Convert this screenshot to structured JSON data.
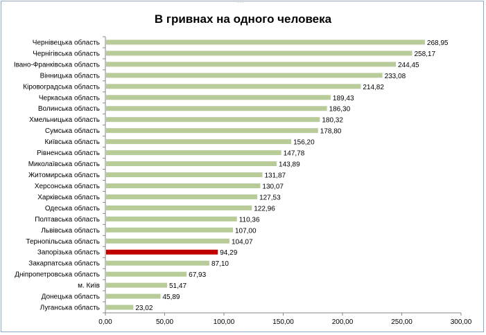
{
  "chart_data": {
    "type": "bar",
    "orientation": "horizontal",
    "title": "В гривнах на одного человека",
    "xlabel": "",
    "ylabel": "",
    "xlim": [
      0,
      300
    ],
    "x_ticks": [
      "0,00",
      "50,00",
      "100,00",
      "150,00",
      "200,00",
      "250,00",
      "300,00"
    ],
    "grid": false,
    "colors": {
      "default": "#b7cc98",
      "highlight": "#c00000"
    },
    "highlight": "Запорізька область",
    "categories": [
      "Чернівецька область",
      "Чернігівська область",
      "Івано-Франківська  область",
      "Вінницька область",
      "Кіровоградська область",
      "Черкаська область",
      "Волинська область",
      "Хмельницька  область",
      "Сумська область",
      "Київська область",
      "Рівненська область",
      "Миколаївська  область",
      "Житомирська область",
      "Херсонська область",
      "Харківська область",
      "Одеська область",
      "Полтавська  область",
      "Львівська область",
      "Тернопільська область",
      "Запорізька область",
      "Закарпатська  область",
      "Дніпропетровська область",
      "м. Київ",
      "Донецька область",
      "Луганська область"
    ],
    "values": [
      268.95,
      258.17,
      244.45,
      233.08,
      214.82,
      189.43,
      186.3,
      180.32,
      178.8,
      156.2,
      147.78,
      143.89,
      131.87,
      130.07,
      127.53,
      122.96,
      110.36,
      107.0,
      104.07,
      94.29,
      87.1,
      67.93,
      51.47,
      45.89,
      23.02
    ],
    "value_labels": [
      "268,95",
      "258,17",
      "244,45",
      "233,08",
      "214,82",
      "189,43",
      "186,30",
      "180,32",
      "178,80",
      "156,20",
      "147,78",
      "143,89",
      "131,87",
      "130,07",
      "127,53",
      "122,96",
      "110,36",
      "107,00",
      "104,07",
      "94,29",
      "87,10",
      "67,93",
      "51,47",
      "45,89",
      "23,02"
    ]
  }
}
